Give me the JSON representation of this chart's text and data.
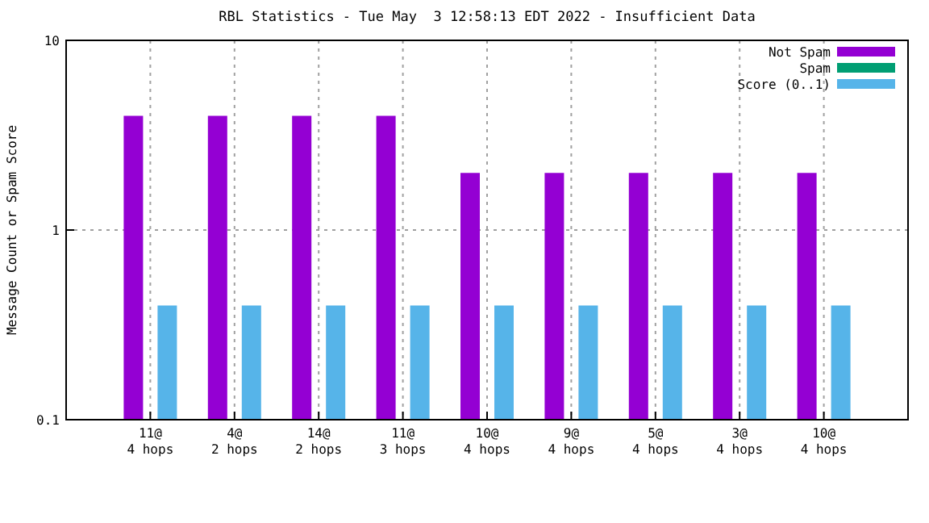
{
  "chart_data": {
    "type": "bar",
    "title": "RBL Statistics - Tue May  3 12:58:13 EDT 2022 - Insufficient Data",
    "ylabel": "Message Count or Spam Score",
    "categories": [
      "11@\n4 hops",
      "4@\n2 hops",
      "14@\n2 hops",
      "11@\n3 hops",
      "10@\n4 hops",
      "9@\n4 hops",
      "5@\n4 hops",
      "3@\n4 hops",
      "10@\n4 hops"
    ],
    "series": [
      {
        "name": "Not Spam",
        "color": "#9400d3",
        "values": [
          4,
          4,
          4,
          4,
          2,
          2,
          2,
          2,
          2
        ]
      },
      {
        "name": "Spam",
        "color": "#009e73",
        "values": [
          null,
          null,
          null,
          null,
          null,
          null,
          null,
          null,
          null
        ]
      },
      {
        "name": "Score (0..1)",
        "color": "#56b4e9",
        "values": [
          0.4,
          0.4,
          0.4,
          0.4,
          0.4,
          0.4,
          0.4,
          0.4,
          0.4
        ]
      }
    ],
    "log": "y",
    "ylim": [
      0.1,
      10
    ],
    "yticks": [
      0.1,
      1,
      10
    ],
    "grid": true,
    "legend": "top right"
  }
}
